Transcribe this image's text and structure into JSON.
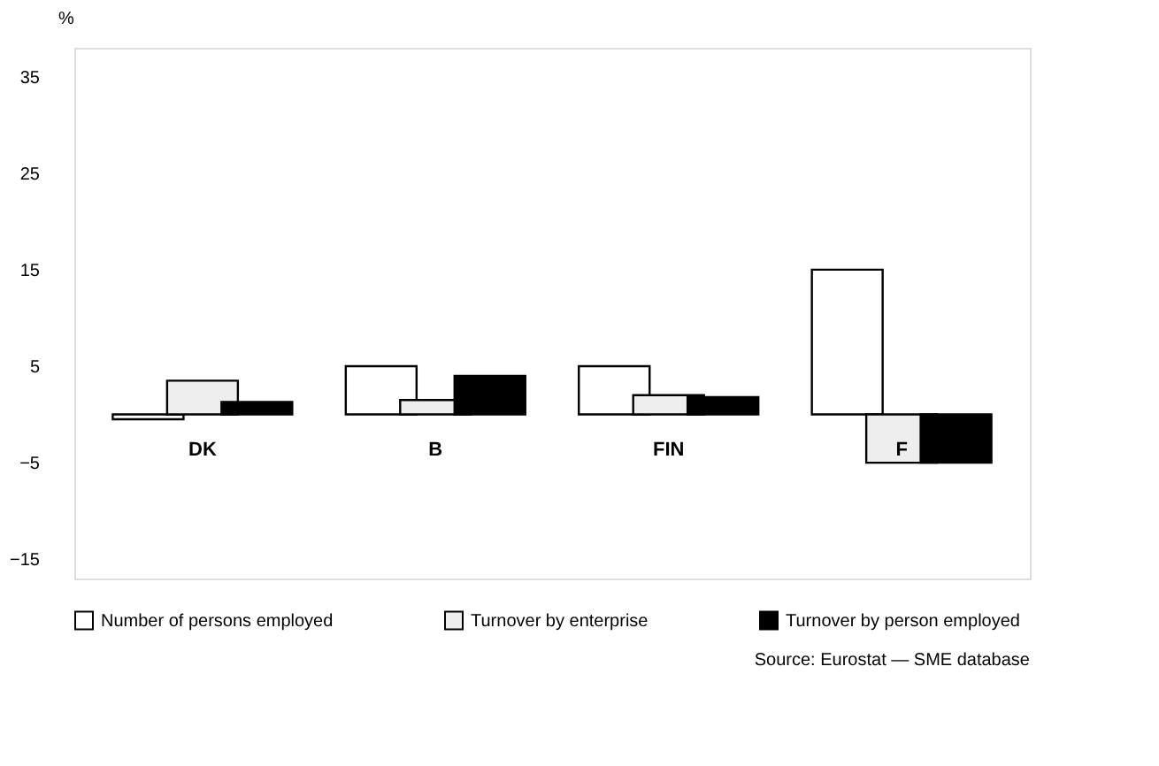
{
  "chart_data": {
    "type": "bar",
    "ylabel": "%",
    "categories": [
      "DK",
      "B",
      "FIN",
      "F"
    ],
    "series": [
      {
        "name": "Number of persons employed",
        "color": "#ffffff",
        "values": [
          -0.5,
          5,
          5,
          15
        ]
      },
      {
        "name": "Turnover by enterprise",
        "color": "#eeeeee",
        "values": [
          3.5,
          1.5,
          2,
          -5
        ]
      },
      {
        "name": "Turnover by person employed",
        "color": "#000000",
        "values": [
          1.3,
          4,
          1.8,
          -5
        ]
      }
    ],
    "ylim": [
      -17,
      38
    ],
    "yticks": [
      -15,
      -5,
      5,
      15,
      25,
      35
    ],
    "grid": false,
    "legend": "bottom",
    "annotations": [
      "Source: Eurostat — SME database"
    ]
  }
}
